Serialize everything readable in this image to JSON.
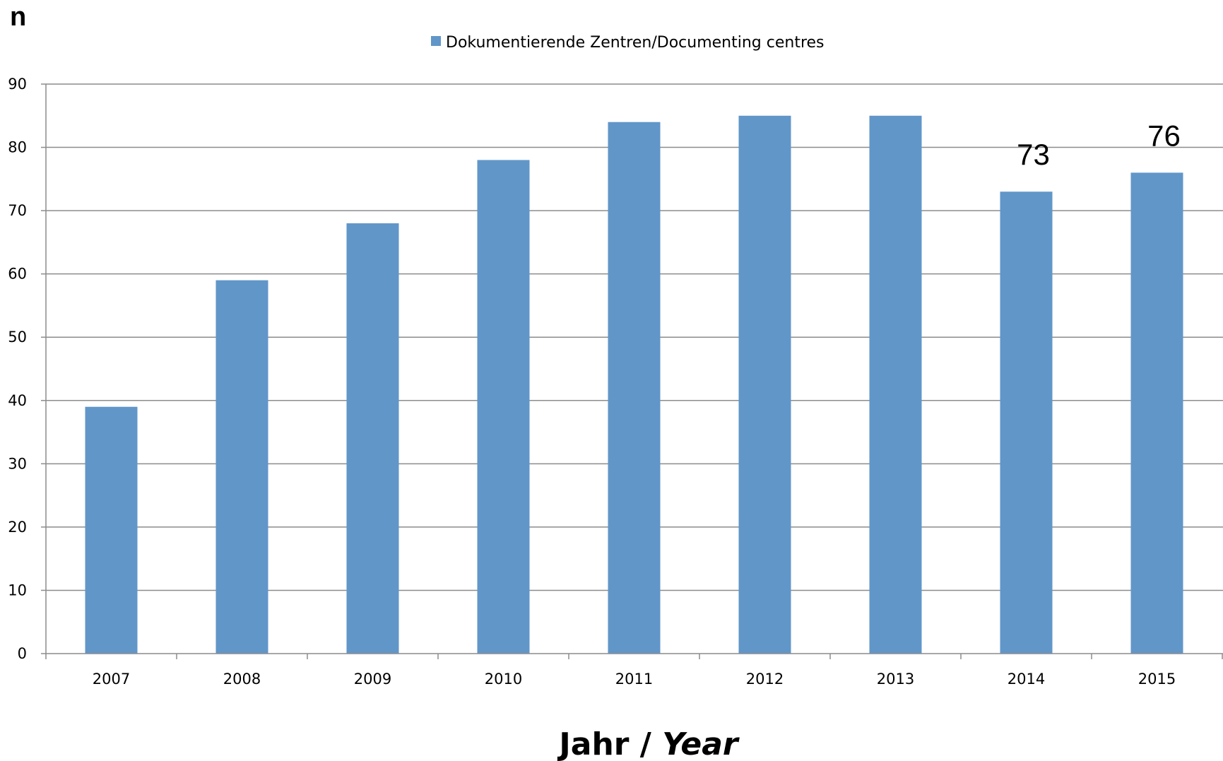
{
  "chart_data": {
    "type": "bar",
    "ylabel": "n",
    "xlabel_parts": [
      "Jahr / ",
      "Year"
    ],
    "categories": [
      "2007",
      "2008",
      "2009",
      "2010",
      "2011",
      "2012",
      "2013",
      "2014",
      "2015"
    ],
    "series": [
      {
        "name": "Dokumentierende Zentren/Documenting centres",
        "values": [
          39,
          59,
          68,
          78,
          84,
          85,
          85,
          73,
          76
        ],
        "color": "#6196C9"
      }
    ],
    "data_labels": [
      {
        "category": "2014",
        "value": 73,
        "text": "73"
      },
      {
        "category": "2015",
        "value": 76,
        "text": "76"
      }
    ],
    "ylim": [
      0,
      90
    ],
    "yticks": [
      0,
      10,
      20,
      30,
      40,
      50,
      60,
      70,
      80,
      90
    ],
    "ytick_labels": [
      "0",
      "10",
      "20",
      "30",
      "40",
      "50",
      "60",
      "70",
      "80",
      "90"
    ],
    "grid": true,
    "legend_position": "top-center",
    "colors": {
      "gridline": "#8C8C8C",
      "axis": "#8C8C8C",
      "text": "#000000",
      "background": "#FFFFFF"
    }
  }
}
